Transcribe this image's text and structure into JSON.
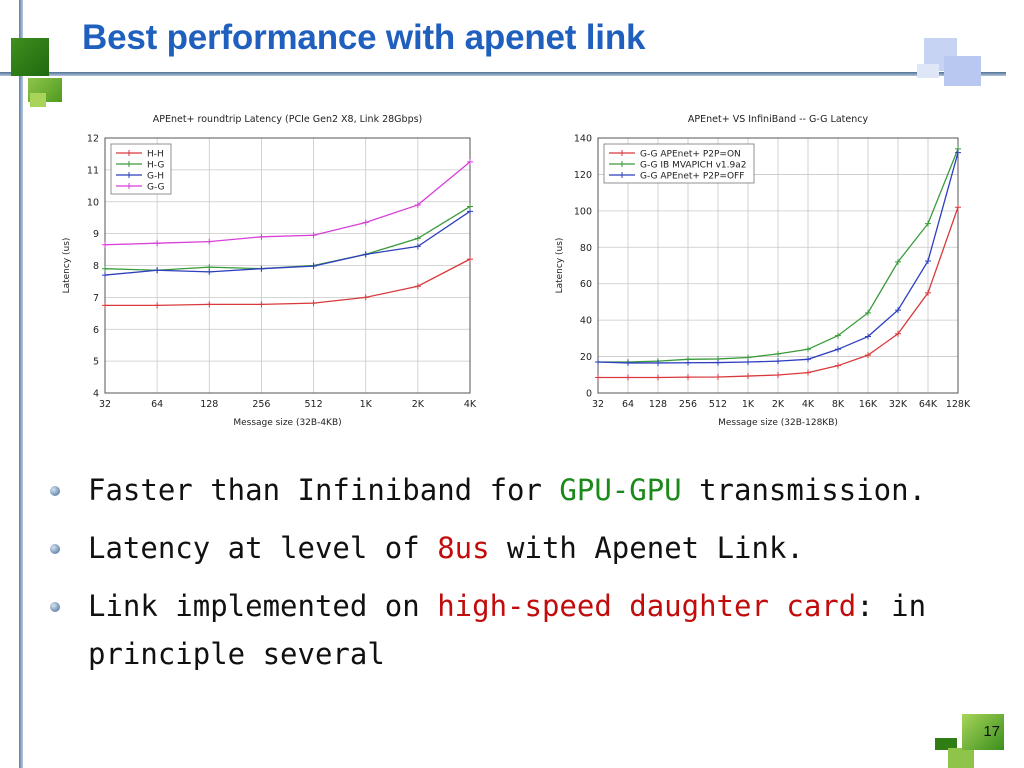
{
  "slide": {
    "title": "Best performance with apenet link",
    "page_number": "17"
  },
  "bullets": [
    {
      "parts": [
        {
          "text": "Faster than Infiniband for ",
          "style": "normal"
        },
        {
          "text": "GPU-GPU",
          "style": "green"
        },
        {
          "text": " transmission.",
          "style": "normal"
        }
      ]
    },
    {
      "parts": [
        {
          "text": "Latency at level of ",
          "style": "normal"
        },
        {
          "text": "8us",
          "style": "red"
        },
        {
          "text": " with Apenet Link.",
          "style": "normal"
        }
      ]
    },
    {
      "parts": [
        {
          "text": "Link implemented on ",
          "style": "normal"
        },
        {
          "text": "high-speed daughter card",
          "style": "red"
        },
        {
          "text": ": in principle several",
          "style": "normal"
        }
      ]
    }
  ],
  "chart_data": [
    {
      "type": "line",
      "title": "APEnet+ roundtrip Latency (PCIe Gen2 X8, Link 28Gbps)",
      "xlabel": "Message size (32B-4KB)",
      "ylabel": "Latency (us)",
      "categories": [
        "32",
        "64",
        "128",
        "256",
        "512",
        "1K",
        "2K",
        "4K"
      ],
      "ylim": [
        4,
        12
      ],
      "yticks": [
        4,
        5,
        6,
        7,
        8,
        9,
        10,
        11,
        12
      ],
      "legend_position": "top-left",
      "grid": true,
      "series": [
        {
          "name": "H-H",
          "color": "#d9393c",
          "values": [
            6.75,
            6.75,
            6.78,
            6.78,
            6.82,
            7.0,
            7.35,
            8.2
          ]
        },
        {
          "name": "H-G",
          "color": "#3a9a3a",
          "values": [
            7.9,
            7.85,
            7.95,
            7.9,
            8.0,
            8.35,
            8.85,
            9.85
          ]
        },
        {
          "name": "G-H",
          "color": "#2f3fbf",
          "values": [
            7.7,
            7.85,
            7.8,
            7.9,
            7.98,
            8.35,
            8.6,
            9.7
          ]
        },
        {
          "name": "G-G",
          "color": "#d93fd9",
          "values": [
            8.65,
            8.7,
            8.75,
            8.9,
            8.95,
            9.35,
            9.9,
            11.25
          ]
        }
      ]
    },
    {
      "type": "line",
      "title": "APEnet+ VS InfiniBand -- G-G Latency",
      "xlabel": "Message size (32B-128KB)",
      "ylabel": "Latency (us)",
      "categories": [
        "32",
        "64",
        "128",
        "256",
        "512",
        "1K",
        "2K",
        "4K",
        "8K",
        "16K",
        "32K",
        "64K",
        "128K"
      ],
      "ylim": [
        0,
        140
      ],
      "yticks": [
        0,
        20,
        40,
        60,
        80,
        100,
        120,
        140
      ],
      "legend_position": "top-left",
      "grid": true,
      "series": [
        {
          "name": "G-G APEnet+ P2P=ON",
          "color": "#d9393c",
          "values": [
            8.5,
            8.5,
            8.5,
            8.7,
            8.8,
            9.3,
            9.9,
            11.2,
            15,
            20.8,
            32.5,
            55,
            102
          ]
        },
        {
          "name": "G-G IB MVAPICH v1.9a2",
          "color": "#3a9a3a",
          "values": [
            17,
            17,
            17.5,
            18.5,
            18.7,
            19.5,
            21.5,
            24,
            31.5,
            44,
            72,
            93,
            134
          ]
        },
        {
          "name": "G-G APEnet+ P2P=OFF",
          "color": "#2f3fbf",
          "values": [
            17,
            16.5,
            16.5,
            16.6,
            16.7,
            17,
            17.5,
            18.5,
            24,
            31,
            45.5,
            72.5,
            132
          ]
        }
      ]
    }
  ]
}
